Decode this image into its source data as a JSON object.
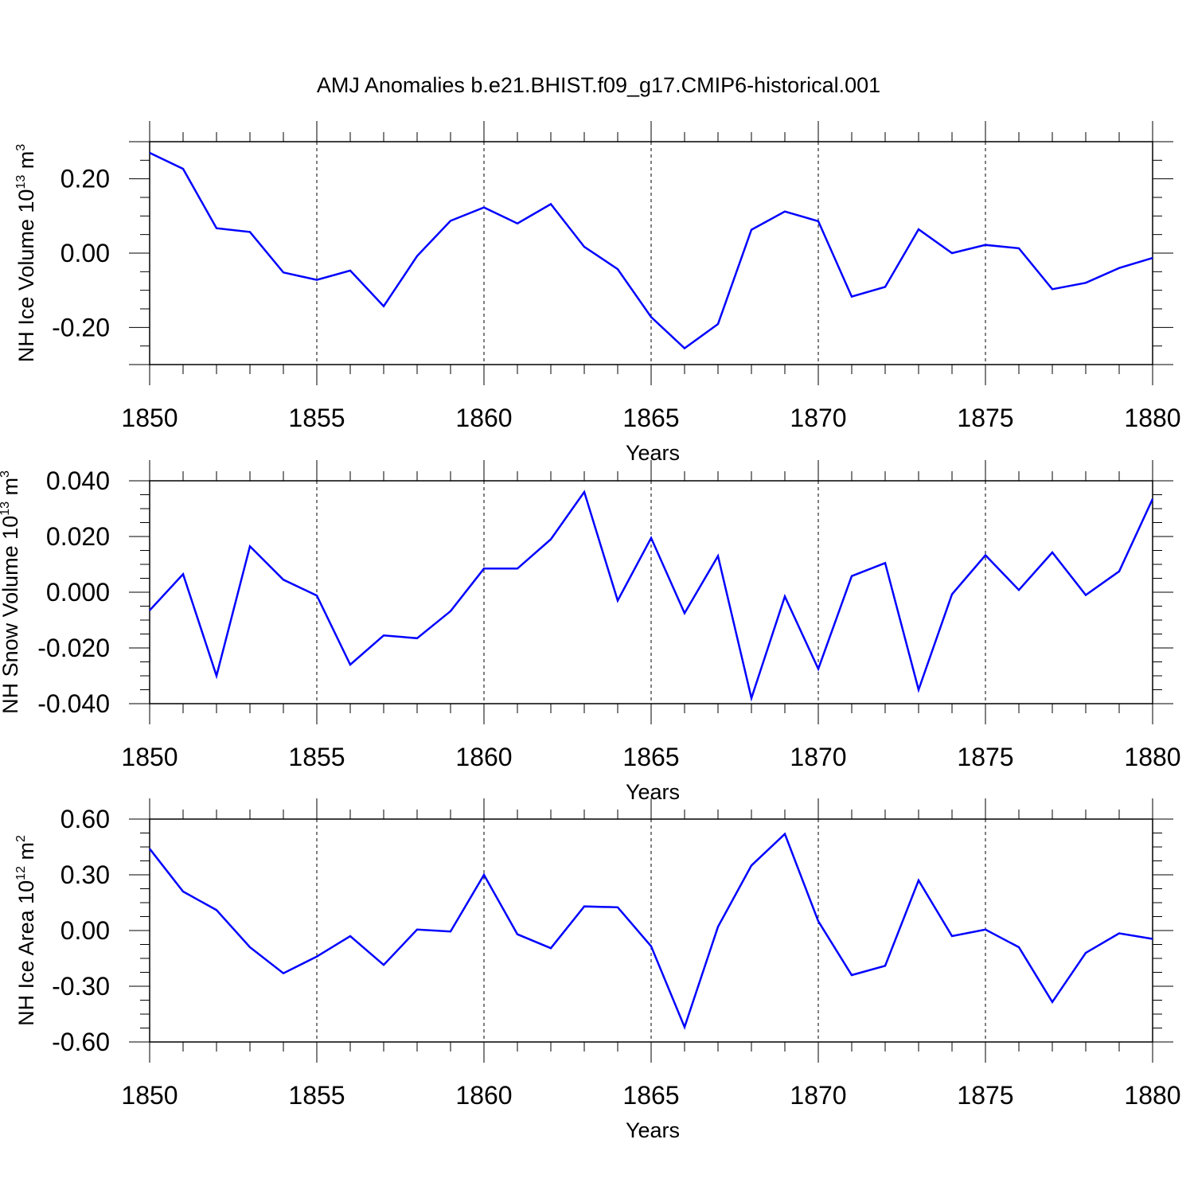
{
  "title": "AMJ Anomalies b.e21.BHIST.f09_g17.CMIP6-historical.001",
  "colors": {
    "line": "#0000ff",
    "axis": "#000000",
    "grid": "#000000"
  },
  "chart_data": [
    {
      "type": "line",
      "ylabel": {
        "text": "NH Ice Volume 10",
        "sup": "13",
        "unit": " m",
        "unit_sup": "3"
      },
      "xlabel": "Years",
      "xlim": [
        1850,
        1880
      ],
      "ylim": [
        -0.3,
        0.3
      ],
      "yticks": [
        -0.2,
        0.0,
        0.2
      ],
      "ytick_labels": [
        "-0.20",
        "0.00",
        "0.20"
      ],
      "xticks": [
        1850,
        1855,
        1860,
        1865,
        1870,
        1875,
        1880
      ],
      "xtick_labels": [
        "1850",
        "1855",
        "1860",
        "1865",
        "1870",
        "1875",
        "1880"
      ],
      "vertical_grid": "dashed at major x ticks",
      "x": [
        1850,
        1851,
        1852,
        1853,
        1854,
        1855,
        1856,
        1857,
        1858,
        1859,
        1860,
        1861,
        1862,
        1863,
        1864,
        1865,
        1866,
        1867,
        1868,
        1869,
        1870,
        1871,
        1872,
        1873,
        1874,
        1875,
        1876,
        1877,
        1878,
        1879,
        1880
      ],
      "y": [
        0.27,
        0.227,
        0.067,
        0.057,
        -0.052,
        -0.072,
        -0.047,
        -0.143,
        -0.008,
        0.087,
        0.123,
        0.08,
        0.132,
        0.017,
        -0.043,
        -0.172,
        -0.256,
        -0.191,
        0.063,
        0.112,
        0.086,
        -0.117,
        -0.091,
        0.064,
        0.0,
        0.022,
        0.013,
        -0.097,
        -0.08,
        -0.04,
        -0.013
      ]
    },
    {
      "type": "line",
      "ylabel": {
        "text": "NH Snow Volume 10",
        "sup": "13",
        "unit": " m",
        "unit_sup": "3"
      },
      "xlabel": "Years",
      "xlim": [
        1850,
        1880
      ],
      "ylim": [
        -0.04,
        0.04
      ],
      "yticks": [
        -0.04,
        -0.02,
        0.0,
        0.02,
        0.04
      ],
      "ytick_labels": [
        "-0.040",
        "-0.020",
        "0.000",
        "0.020",
        "0.040"
      ],
      "xticks": [
        1850,
        1855,
        1860,
        1865,
        1870,
        1875,
        1880
      ],
      "xtick_labels": [
        "1850",
        "1855",
        "1860",
        "1865",
        "1870",
        "1875",
        "1880"
      ],
      "vertical_grid": "dashed at major x ticks",
      "x": [
        1850,
        1851,
        1852,
        1853,
        1854,
        1855,
        1856,
        1857,
        1858,
        1859,
        1860,
        1861,
        1862,
        1863,
        1864,
        1865,
        1866,
        1867,
        1868,
        1869,
        1870,
        1871,
        1872,
        1873,
        1874,
        1875,
        1876,
        1877,
        1878,
        1879,
        1880
      ],
      "y": [
        -0.0065,
        0.0065,
        -0.03,
        0.0165,
        0.0045,
        -0.0012,
        -0.026,
        -0.0155,
        -0.0165,
        -0.0068,
        0.0085,
        0.0085,
        0.019,
        0.036,
        -0.003,
        0.0195,
        -0.0075,
        0.013,
        -0.038,
        -0.0015,
        -0.0275,
        0.0058,
        0.0105,
        -0.035,
        -0.0007,
        0.0133,
        0.0008,
        0.0143,
        -0.001,
        0.0075,
        0.0335
      ]
    },
    {
      "type": "line",
      "ylabel": {
        "text": "NH Ice Area 10",
        "sup": "12",
        "unit": " m",
        "unit_sup": "2"
      },
      "xlabel": "Years",
      "xlim": [
        1850,
        1880
      ],
      "ylim": [
        -0.6,
        0.6
      ],
      "yticks": [
        -0.6,
        -0.3,
        0.0,
        0.3,
        0.6
      ],
      "ytick_labels": [
        "-0.60",
        "-0.30",
        "0.00",
        "0.30",
        "0.60"
      ],
      "xticks": [
        1850,
        1855,
        1860,
        1865,
        1870,
        1875,
        1880
      ],
      "xtick_labels": [
        "1850",
        "1855",
        "1860",
        "1865",
        "1870",
        "1875",
        "1880"
      ],
      "vertical_grid": "dashed at major x ticks",
      "x": [
        1850,
        1851,
        1852,
        1853,
        1854,
        1855,
        1856,
        1857,
        1858,
        1859,
        1860,
        1861,
        1862,
        1863,
        1864,
        1865,
        1866,
        1867,
        1868,
        1869,
        1870,
        1871,
        1872,
        1873,
        1874,
        1875,
        1876,
        1877,
        1878,
        1879,
        1880
      ],
      "y": [
        0.44,
        0.21,
        0.11,
        -0.09,
        -0.23,
        -0.14,
        -0.03,
        -0.185,
        0.005,
        -0.005,
        0.3,
        -0.02,
        -0.095,
        0.13,
        0.125,
        -0.085,
        -0.52,
        0.02,
        0.35,
        0.52,
        0.05,
        -0.24,
        -0.19,
        0.27,
        -0.03,
        0.005,
        -0.09,
        -0.385,
        -0.12,
        -0.015,
        -0.045
      ]
    }
  ]
}
